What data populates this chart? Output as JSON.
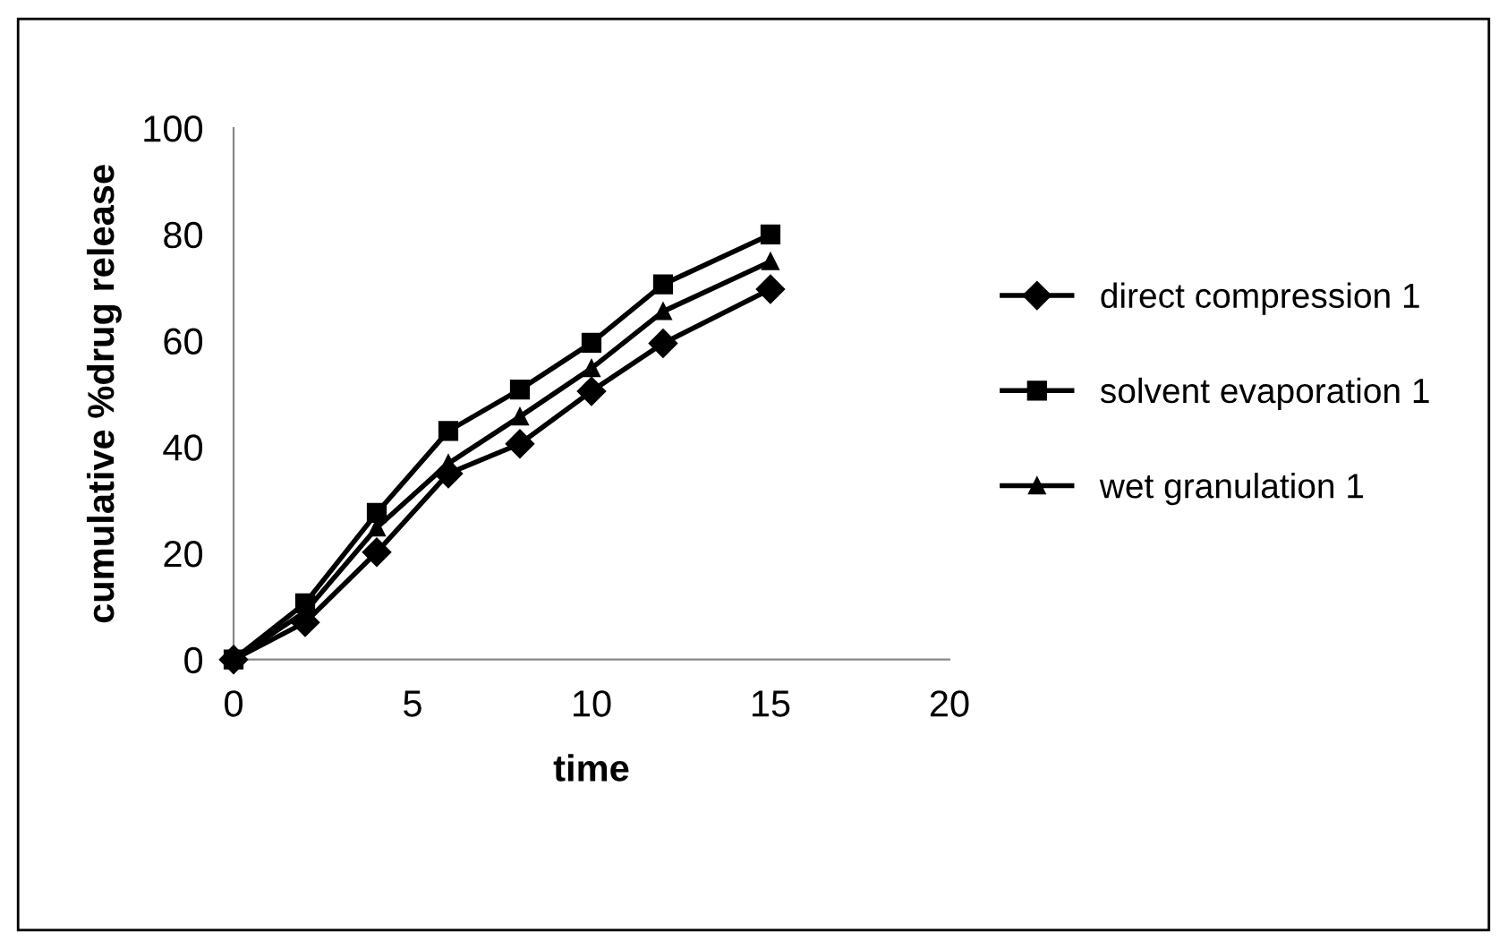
{
  "chart_data": {
    "type": "line",
    "xlabel": "time",
    "ylabel": "cumulative %drug release",
    "xlim": [
      0,
      20
    ],
    "xticks": [
      0,
      5,
      10,
      15,
      20
    ],
    "ylim": [
      0,
      100
    ],
    "yticks": [
      0,
      20,
      40,
      60,
      80,
      100
    ],
    "grid": false,
    "legend": "right",
    "line_style": "solid",
    "series": [
      {
        "name": "direct compression 1",
        "color": "#000000",
        "marker": "diamond",
        "x": [
          0,
          2,
          4,
          6,
          8,
          10,
          12,
          15
        ],
        "values": [
          0,
          7,
          20.2,
          35,
          40.6,
          50.5,
          59.5,
          69.7
        ]
      },
      {
        "name": "solvent evaporation 1",
        "color": "#000000",
        "marker": "square",
        "x": [
          0,
          2,
          4,
          6,
          8,
          10,
          12,
          15
        ],
        "values": [
          0,
          10.6,
          27.6,
          43,
          50.8,
          59.6,
          70.6,
          80
        ]
      },
      {
        "name": "wet granulation 1",
        "color": "#000000",
        "marker": "triangle",
        "x": [
          0,
          2,
          4,
          6,
          8,
          10,
          12,
          15
        ],
        "values": [
          0,
          9,
          24.8,
          36.9,
          45.7,
          54.8,
          65.5,
          74.9
        ]
      }
    ]
  }
}
